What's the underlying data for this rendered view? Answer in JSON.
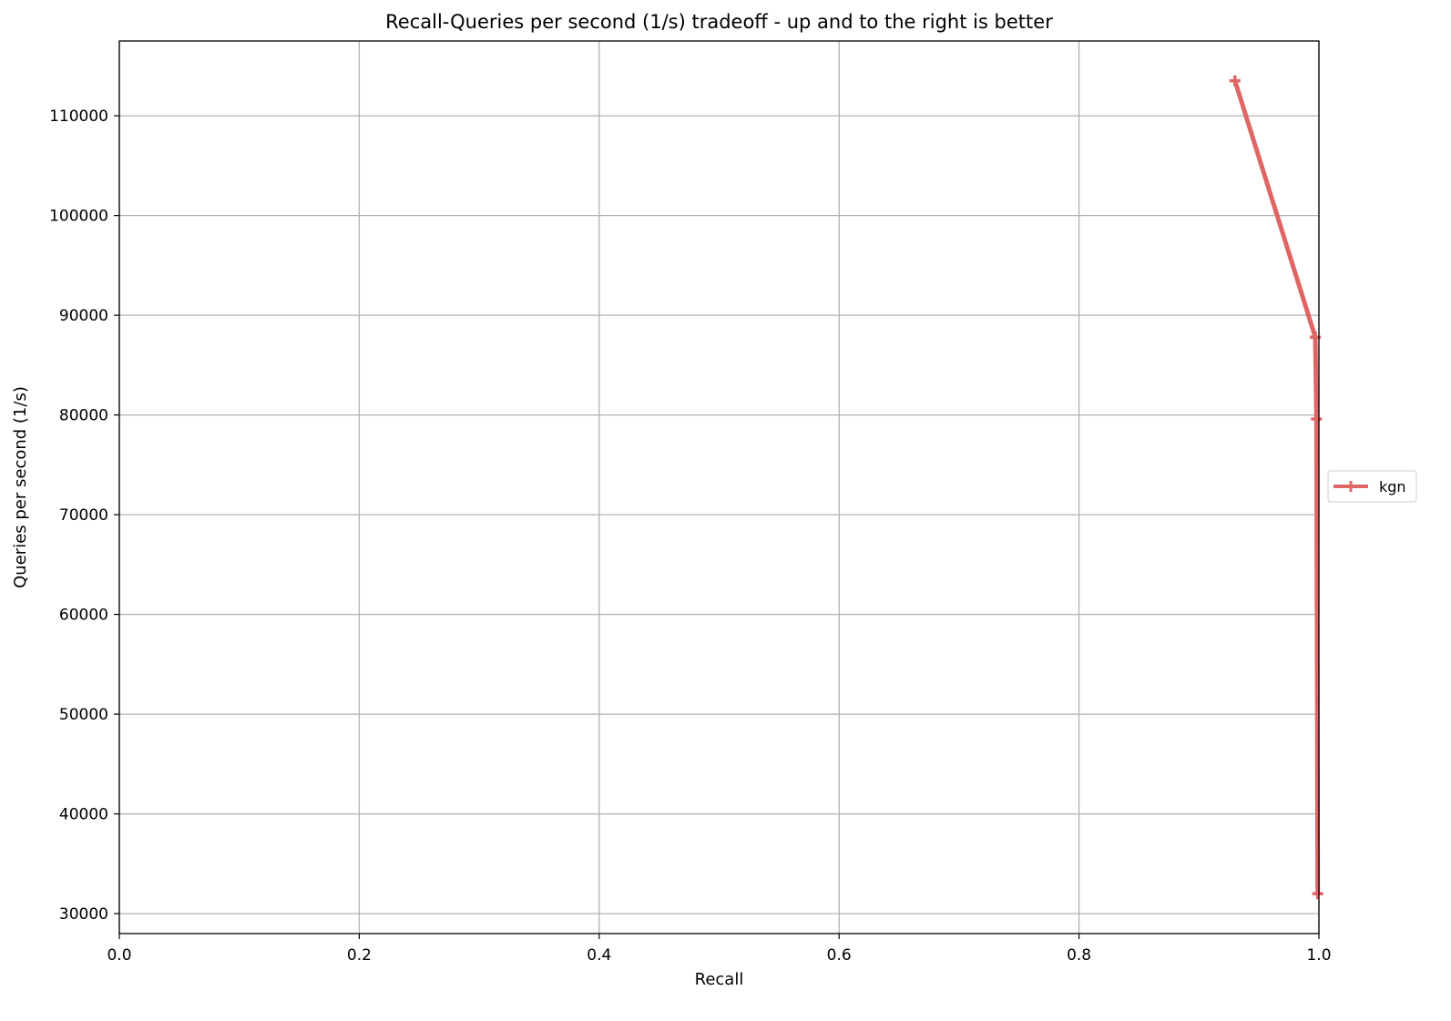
{
  "chart_data": {
    "type": "line",
    "title": "Recall-Queries per second (1/s) tradeoff - up and to the right is better",
    "xlabel": "Recall",
    "ylabel": "Queries per second (1/s)",
    "xlim": [
      0.0,
      1.0
    ],
    "ylim": [
      28000,
      117500
    ],
    "xticks": [
      0.0,
      0.2,
      0.4,
      0.6,
      0.8,
      1.0
    ],
    "xtick_labels": [
      "0.0",
      "0.2",
      "0.4",
      "0.6",
      "0.8",
      "1.0"
    ],
    "yticks": [
      30000,
      40000,
      50000,
      60000,
      70000,
      80000,
      90000,
      100000,
      110000
    ],
    "ytick_labels": [
      "30000",
      "40000",
      "50000",
      "60000",
      "70000",
      "80000",
      "90000",
      "100000",
      "110000"
    ],
    "grid": true,
    "legend_position": "right",
    "series": [
      {
        "name": "kgn",
        "color": "#e06666",
        "marker": "plus",
        "points": [
          {
            "x": 0.93,
            "y": 113500
          },
          {
            "x": 0.997,
            "y": 87800
          },
          {
            "x": 0.998,
            "y": 79600
          },
          {
            "x": 0.999,
            "y": 32000
          }
        ]
      }
    ]
  }
}
